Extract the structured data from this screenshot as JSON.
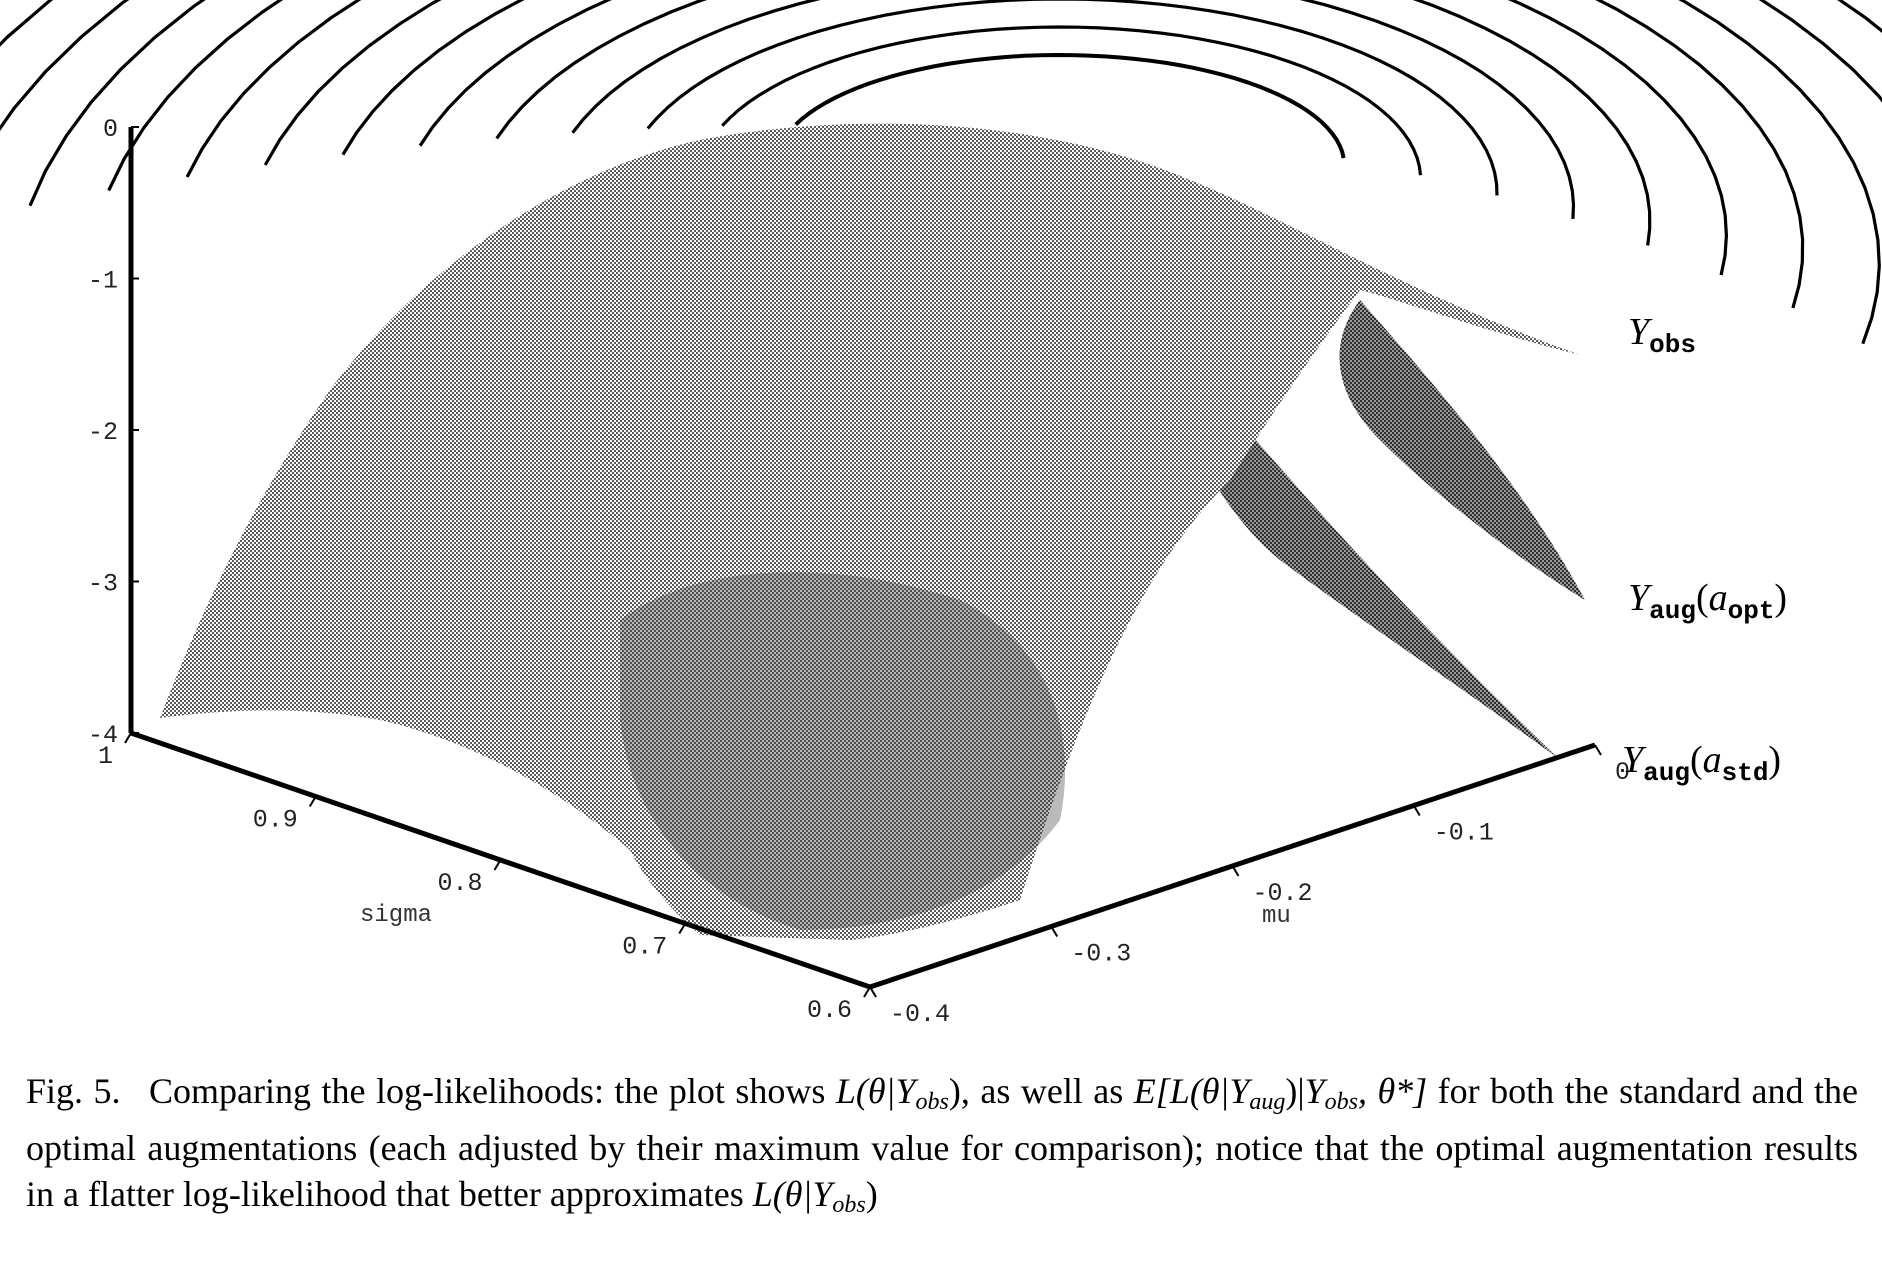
{
  "chart_data": {
    "type": "surface3d",
    "title": "",
    "axes": {
      "x": {
        "label": "sigma",
        "ticks": [
          "0.6",
          "0.7",
          "0.8",
          "0.9",
          "1"
        ],
        "range": [
          0.6,
          1.0
        ]
      },
      "y": {
        "label": "mu",
        "ticks": [
          "-0.4",
          "-0.3",
          "-0.2",
          "-0.1",
          "0"
        ],
        "range": [
          -0.4,
          0.0
        ]
      },
      "z": {
        "label": "",
        "ticks": [
          "0",
          "-1",
          "-2",
          "-3",
          "-4"
        ],
        "range": [
          -4,
          0
        ]
      }
    },
    "series": [
      {
        "name": "Yobs",
        "name_main": "Y",
        "name_sub": "obs",
        "peak": [
          0.82,
          -0.18
        ]
      },
      {
        "name": "Yaug(aopt)",
        "name_main": "Y",
        "name_sub": "aug",
        "name_arg": "a",
        "name_arg_sub": "opt"
      },
      {
        "name": "Yaug(astd)",
        "name_main": "Y",
        "name_sub": "aug",
        "name_arg": "a",
        "name_arg_sub": "std"
      }
    ],
    "grid": false
  },
  "caption": {
    "label": "Fig. 5.",
    "text_1": "Comparing the log-likelihoods: the plot shows ",
    "L1": "L(θ|",
    "Y1": "Y",
    "obs1": "obs",
    "close1": ")",
    "text_2": ", as well as ",
    "E": "E[L(θ|",
    "Y2": "Y",
    "aug2": "aug",
    "close2": ")|",
    "Y3": "Y",
    "obs3": "obs",
    "theta": ", θ*]",
    "text_3": " for both the standard and the optimal augmentations (each adjusted by their maximum value for comparison); notice that the optimal augmentation results in a flatter log-likelihood that better approximates ",
    "L4": "L(θ|",
    "Y4": "Y",
    "obs4": "obs",
    "close4": ")"
  }
}
